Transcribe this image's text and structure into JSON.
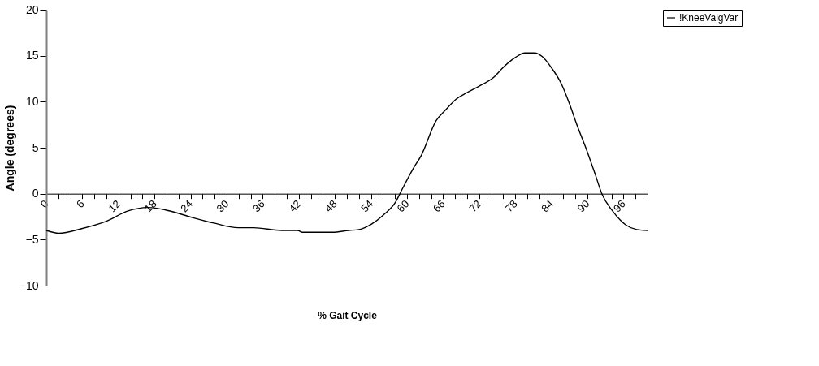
{
  "chart_data": {
    "type": "line",
    "xlabel": "% Gait Cycle",
    "ylabel": "Angle (degrees)",
    "x": [
      0,
      2.1,
      5.9,
      10,
      13.5,
      16.9,
      20.7,
      24.3,
      27.9,
      31.9,
      34.5,
      39.1,
      41.8,
      42.6,
      47.6,
      50.3,
      52,
      54.1,
      56.1,
      58.1,
      59.2,
      61,
      62.4,
      64.8,
      66.4,
      68.2,
      70,
      72,
      74.5,
      75.8,
      78,
      79.6,
      81.2,
      82.5,
      83.9,
      85.7,
      87,
      88.3,
      89.9,
      91.3,
      92.4,
      94.2,
      96.4,
      98.2,
      100
    ],
    "series": [
      {
        "name": "!KneeValgVar",
        "color": "#000000",
        "values": [
          -4.0,
          -4.3,
          -3.8,
          -3.0,
          -1.9,
          -1.5,
          -1.9,
          -2.6,
          -3.2,
          -3.7,
          -3.7,
          -4.0,
          -4.0,
          -4.2,
          -4.2,
          -4.0,
          -3.9,
          -3.3,
          -2.3,
          -0.9,
          0.5,
          2.7,
          4.2,
          7.9,
          9.1,
          10.3,
          11.0,
          11.7,
          12.7,
          13.6,
          14.8,
          15.3,
          15.3,
          14.9,
          13.8,
          11.9,
          9.8,
          7.4,
          4.7,
          2.1,
          0.0,
          -1.9,
          -3.4,
          -3.9,
          -4.0
        ]
      }
    ],
    "xlim": [
      0,
      100
    ],
    "xticks": [
      0,
      {
        "value": 2,
        "label": null
      },
      {
        "value": 4,
        "label": null
      },
      6,
      {
        "value": 8,
        "label": null
      },
      {
        "value": 10,
        "label": null
      },
      12,
      {
        "value": 14,
        "label": null
      },
      {
        "value": 16,
        "label": null
      },
      18,
      {
        "value": 20,
        "label": null
      },
      {
        "value": 22,
        "label": null
      },
      24,
      {
        "value": 26,
        "label": null
      },
      {
        "value": 28,
        "label": null
      },
      30,
      {
        "value": 32,
        "label": null
      },
      {
        "value": 34,
        "label": null
      },
      36,
      {
        "value": 38,
        "label": null
      },
      {
        "value": 40,
        "label": null
      },
      42,
      {
        "value": 44,
        "label": null
      },
      {
        "value": 46,
        "label": null
      },
      48,
      {
        "value": 50,
        "label": null
      },
      {
        "value": 52,
        "label": null
      },
      54,
      {
        "value": 56,
        "label": null
      },
      {
        "value": 58,
        "label": null
      },
      60,
      {
        "value": 62,
        "label": null
      },
      {
        "value": 64,
        "label": null
      },
      66,
      {
        "value": 68,
        "label": null
      },
      {
        "value": 70,
        "label": null
      },
      72,
      {
        "value": 74,
        "label": null
      },
      {
        "value": 76,
        "label": null
      },
      78,
      {
        "value": 80,
        "label": null
      },
      {
        "value": 82,
        "label": null
      },
      84,
      {
        "value": 86,
        "label": null
      },
      {
        "value": 88,
        "label": null
      },
      90,
      {
        "value": 92,
        "label": null
      },
      {
        "value": 94,
        "label": null
      },
      96,
      {
        "value": 98,
        "label": null
      },
      {
        "value": 100,
        "label": null
      }
    ],
    "ylim": [
      -10,
      20
    ],
    "yticks": [
      -10,
      -5,
      0,
      5,
      10,
      15,
      20
    ],
    "grid": false,
    "legend": "right",
    "marker": "none",
    "line_style": "solid"
  }
}
